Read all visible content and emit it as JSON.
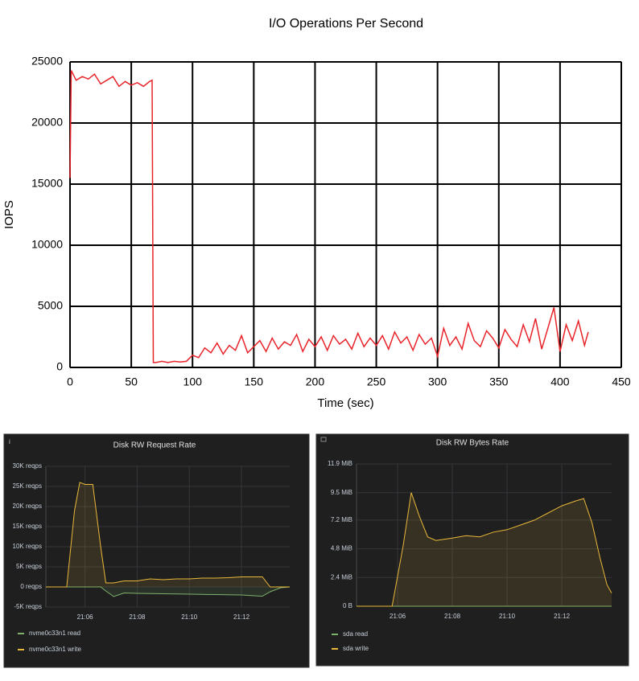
{
  "chart_data": [
    {
      "type": "line",
      "title": "I/O Operations Per Second",
      "x_label": "Time (sec)",
      "y_label": "IOPS",
      "x": [
        0,
        1,
        5,
        10,
        15,
        20,
        25,
        30,
        35,
        40,
        45,
        50,
        55,
        60,
        65,
        67,
        68,
        70,
        75,
        80,
        85,
        90,
        95,
        100,
        105,
        110,
        115,
        120,
        125,
        130,
        135,
        140,
        145,
        150,
        155,
        160,
        165,
        170,
        175,
        180,
        185,
        190,
        195,
        200,
        205,
        210,
        215,
        220,
        225,
        230,
        235,
        240,
        245,
        250,
        255,
        260,
        265,
        270,
        275,
        280,
        285,
        290,
        295,
        300,
        305,
        310,
        315,
        320,
        325,
        330,
        335,
        340,
        345,
        350,
        355,
        360,
        365,
        370,
        375,
        380,
        385,
        390,
        395,
        400,
        405,
        410,
        415,
        420,
        423
      ],
      "values": [
        15500,
        24300,
        23500,
        23800,
        23600,
        24000,
        23200,
        23500,
        23800,
        23000,
        23400,
        23100,
        23300,
        23000,
        23400,
        23500,
        400,
        400,
        500,
        400,
        500,
        450,
        500,
        1000,
        800,
        1600,
        1200,
        2000,
        1100,
        1800,
        1400,
        2600,
        1200,
        1700,
        2200,
        1300,
        2400,
        1500,
        2100,
        1800,
        2700,
        1300,
        2300,
        1700,
        2500,
        1400,
        2600,
        1900,
        2300,
        1500,
        2800,
        1700,
        2400,
        1800,
        2600,
        1500,
        2900,
        2000,
        2500,
        1400,
        2700,
        1900,
        2400,
        900,
        3200,
        1800,
        2500,
        1500,
        3600,
        2200,
        1700,
        3000,
        2400,
        1600,
        3100,
        2300,
        1700,
        3500,
        2100,
        4000,
        1500,
        3200,
        4900,
        1300,
        3500,
        2200,
        3800,
        1800,
        2900
      ],
      "color": "#e8242b",
      "xlim": [
        0,
        450
      ],
      "xticks": [
        0,
        50,
        100,
        150,
        200,
        250,
        300,
        350,
        400,
        450
      ],
      "ylim": [
        0,
        25000
      ],
      "yticks": [
        0,
        5000,
        10000,
        15000,
        20000,
        25000
      ],
      "grid": true
    },
    {
      "type": "area",
      "title": "Disk RW Request Rate",
      "x": [
        1264.5,
        1265.3,
        1265.6,
        1265.8,
        1266.0,
        1266.3,
        1266.6,
        1266.8,
        1267.1,
        1267.5,
        1268,
        1268.5,
        1269,
        1269.5,
        1270,
        1270.5,
        1271,
        1271.5,
        1272,
        1272.5,
        1272.8,
        1273.1,
        1273.5,
        1273.85
      ],
      "series": [
        {
          "name": "nvme0c33n1 read",
          "color": "#7eb26d",
          "values": [
            0,
            0,
            0,
            0,
            0,
            0,
            0,
            -1000,
            -2400,
            -1500,
            -1600,
            -1650,
            -1700,
            -1750,
            -1800,
            -1850,
            -1900,
            -1950,
            -2000,
            -2200,
            -2300,
            -1200,
            -200,
            0
          ]
        },
        {
          "name": "nvme0c33n1 write",
          "color": "#eab839",
          "values": [
            0,
            0,
            19000,
            26000,
            25500,
            25500,
            10000,
            1000,
            1000,
            1500,
            1500,
            2000,
            1800,
            2000,
            2000,
            2200,
            2200,
            2300,
            2500,
            2500,
            2500,
            0,
            0,
            0
          ]
        }
      ],
      "xlim": [
        1264.5,
        1273.85
      ],
      "xticks": [
        {
          "value": 1266,
          "label": "21:06"
        },
        {
          "value": 1268,
          "label": "21:08"
        },
        {
          "value": 1270,
          "label": "21:10"
        },
        {
          "value": 1272,
          "label": "21:12"
        }
      ],
      "ylim": [
        -5000,
        30000
      ],
      "yticks": [
        {
          "value": -5000,
          "label": "-5K reqps"
        },
        {
          "value": 0,
          "label": "0 reqps"
        },
        {
          "value": 5000,
          "label": "5K reqps"
        },
        {
          "value": 10000,
          "label": "10K reqps"
        },
        {
          "value": 15000,
          "label": "15K reqps"
        },
        {
          "value": 20000,
          "label": "20K reqps"
        },
        {
          "value": 25000,
          "label": "25K reqps"
        },
        {
          "value": 30000,
          "label": "30K reqps"
        }
      ],
      "grid": true
    },
    {
      "type": "area",
      "title": "Disk RW Bytes Rate",
      "x": [
        1264.5,
        1265.8,
        1266.2,
        1266.5,
        1266.8,
        1267.1,
        1267.4,
        1268,
        1268.5,
        1269,
        1269.5,
        1270,
        1270.5,
        1271,
        1271.5,
        1272,
        1272.5,
        1272.8,
        1273.1,
        1273.4,
        1273.65,
        1273.82
      ],
      "series": [
        {
          "name": "sda read",
          "color": "#7eb26d",
          "values": [
            0,
            0,
            0,
            0,
            0,
            0,
            0,
            0,
            0,
            0,
            0,
            0,
            0,
            0,
            0,
            0,
            0,
            0,
            0,
            0,
            0,
            0
          ]
        },
        {
          "name": "sda write",
          "color": "#eab839",
          "values": [
            0,
            0,
            5,
            9.5,
            7.5,
            5.8,
            5.5,
            5.7,
            5.9,
            5.8,
            6.2,
            6.4,
            6.8,
            7.2,
            7.8,
            8.4,
            8.8,
            9.0,
            7.0,
            4.0,
            1.8,
            1.1
          ]
        }
      ],
      "xlim": [
        1264.5,
        1273.82
      ],
      "xticks": [
        {
          "value": 1266,
          "label": "21:06"
        },
        {
          "value": 1268,
          "label": "21:08"
        },
        {
          "value": 1270,
          "label": "21:10"
        },
        {
          "value": 1272,
          "label": "21:12"
        }
      ],
      "ylim": [
        0,
        11.9
      ],
      "yticks": [
        {
          "value": 0,
          "label": "0 B"
        },
        {
          "value": 2.4,
          "label": "2.4 MiB"
        },
        {
          "value": 4.8,
          "label": "4.8 MiB"
        },
        {
          "value": 7.2,
          "label": "7.2 MiB"
        },
        {
          "value": 9.5,
          "label": "9.5 MiB"
        },
        {
          "value": 11.9,
          "label": "11.9 MiB"
        }
      ],
      "grid": true
    }
  ]
}
